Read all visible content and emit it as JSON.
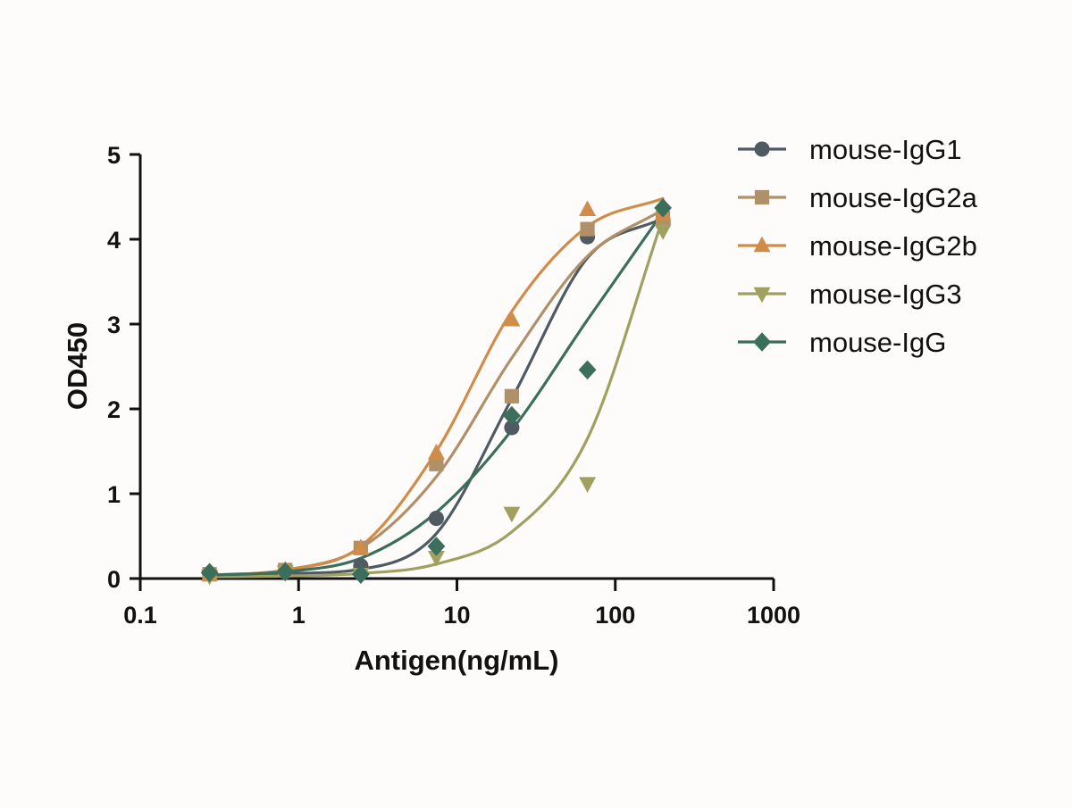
{
  "chart_data": {
    "type": "scatter",
    "xlabel": "Antigen(ng/mL)",
    "ylabel": "OD450",
    "xscale": "log",
    "xlim": [
      0.1,
      1000
    ],
    "ylim": [
      0,
      5
    ],
    "xticks": [
      0.1,
      1,
      10,
      100,
      1000
    ],
    "xtick_labels": [
      "0.1",
      "1",
      "10",
      "100",
      "1000"
    ],
    "yticks": [
      0,
      1,
      2,
      3,
      4,
      5
    ],
    "ytick_labels": [
      "0",
      "1",
      "2",
      "3",
      "4",
      "5"
    ],
    "grid": false,
    "legend_position": "top-right",
    "fit": "sigmoidal curve fit (log x)",
    "x": [
      0.274,
      0.823,
      2.47,
      7.41,
      22.2,
      66.7,
      200
    ],
    "series": [
      {
        "name": "mouse-IgG1",
        "color": "#505a62",
        "marker": "circle",
        "values": [
          0.06,
          0.08,
          0.15,
          0.71,
          1.78,
          4.03,
          4.2
        ],
        "fit": [
          0.04,
          0.06,
          0.11,
          0.53,
          2.12,
          3.78,
          4.25
        ]
      },
      {
        "name": "mouse-IgG2a",
        "color": "#b09068",
        "marker": "square",
        "values": [
          0.05,
          0.1,
          0.36,
          1.35,
          2.15,
          4.12,
          4.25
        ],
        "fit": [
          0.04,
          0.1,
          0.36,
          1.2,
          2.6,
          3.8,
          4.35
        ]
      },
      {
        "name": "mouse-IgG2b",
        "color": "#d08c48",
        "marker": "triangle-up",
        "values": [
          0.05,
          0.1,
          0.36,
          1.48,
          3.05,
          4.35,
          4.3
        ],
        "fit": [
          0.04,
          0.1,
          0.38,
          1.5,
          3.15,
          4.15,
          4.48
        ]
      },
      {
        "name": "mouse-IgG3",
        "color": "#a0a060",
        "marker": "triangle-down",
        "values": [
          0.03,
          0.08,
          0.05,
          0.25,
          0.77,
          1.12,
          4.1
        ],
        "fit": [
          0.02,
          0.03,
          0.06,
          0.17,
          0.55,
          1.65,
          4.25
        ]
      },
      {
        "name": "mouse-IgG",
        "color": "#3c6e5c",
        "marker": "diamond",
        "values": [
          0.07,
          0.08,
          0.05,
          0.38,
          1.92,
          2.46,
          4.37
        ],
        "fit": [
          0.04,
          0.08,
          0.24,
          0.78,
          1.75,
          3.05,
          4.32
        ]
      }
    ]
  }
}
